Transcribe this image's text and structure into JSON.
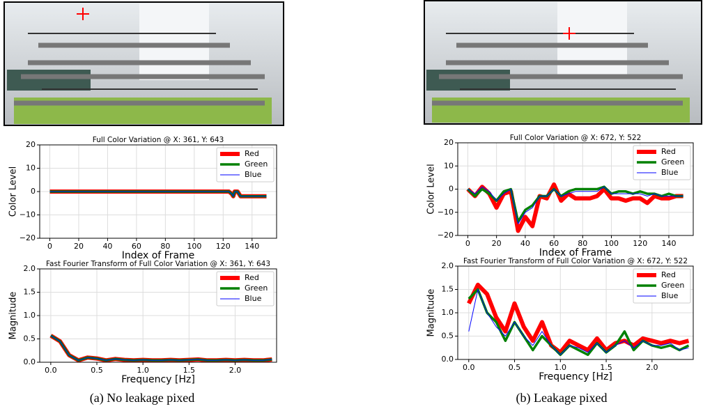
{
  "captions": [
    "(a) No leakage pixed",
    "(b) Leakage pixed"
  ],
  "chart_data": [
    {
      "type": "line",
      "title": "Full Color Variation @ X: 361, Y: 643",
      "xlabel": "Index of Frame",
      "ylabel": "Color Level",
      "x": [
        0,
        10,
        20,
        30,
        40,
        50,
        60,
        70,
        80,
        90,
        100,
        110,
        120,
        124,
        126,
        127,
        128,
        130,
        132,
        140,
        150
      ],
      "series": [
        {
          "name": "Red",
          "color": "#ff0000",
          "values": [
            0,
            0,
            0,
            0,
            0,
            0,
            0,
            0,
            0,
            0,
            0,
            0,
            0,
            0,
            -1,
            -2,
            0,
            0,
            -2,
            -2,
            -2
          ]
        },
        {
          "name": "Green",
          "color": "#008000",
          "values": [
            0,
            0,
            0,
            0,
            0,
            0,
            0,
            0,
            0,
            0,
            0,
            0,
            0,
            0,
            -1,
            -2,
            0,
            0,
            -2,
            -2,
            -2
          ]
        },
        {
          "name": "Blue",
          "color": "#0000ff",
          "values": [
            0,
            0,
            0,
            0,
            0,
            0,
            0,
            0,
            0,
            0,
            0,
            0,
            0,
            0,
            -1,
            -2,
            0,
            0,
            -2,
            -2,
            -2
          ]
        }
      ],
      "xlim": [
        -7,
        157
      ],
      "ylim": [
        -20,
        20
      ],
      "xticks": [
        0,
        20,
        40,
        60,
        80,
        100,
        120,
        140
      ],
      "yticks": [
        {
          "value": -20,
          "label": "−20"
        },
        {
          "value": -10,
          "label": "−10"
        },
        0,
        10,
        20
      ],
      "grid": true,
      "legend": "upper right"
    },
    {
      "type": "line",
      "title": "Fast Fourier Transform of Full Color Variation @ X: 361, Y: 643",
      "xlabel": "Frequency [Hz]",
      "ylabel": "Magnitude",
      "x": [
        0,
        0.1,
        0.2,
        0.3,
        0.4,
        0.5,
        0.6,
        0.7,
        0.8,
        0.9,
        1.0,
        1.1,
        1.2,
        1.3,
        1.4,
        1.5,
        1.6,
        1.7,
        1.8,
        1.9,
        2.0,
        2.1,
        2.2,
        2.3,
        2.4
      ],
      "series": [
        {
          "name": "Red",
          "color": "#ff0000",
          "values": [
            0.57,
            0.45,
            0.15,
            0.04,
            0.1,
            0.08,
            0.04,
            0.07,
            0.05,
            0.04,
            0.05,
            0.04,
            0.04,
            0.05,
            0.04,
            0.05,
            0.06,
            0.04,
            0.04,
            0.05,
            0.04,
            0.05,
            0.04,
            0.04,
            0.06
          ]
        },
        {
          "name": "Green",
          "color": "#008000",
          "values": [
            0.57,
            0.45,
            0.15,
            0.04,
            0.1,
            0.08,
            0.04,
            0.07,
            0.05,
            0.04,
            0.05,
            0.04,
            0.04,
            0.05,
            0.04,
            0.05,
            0.06,
            0.04,
            0.04,
            0.05,
            0.04,
            0.05,
            0.04,
            0.04,
            0.06
          ]
        },
        {
          "name": "Blue",
          "color": "#0000ff",
          "values": [
            0.57,
            0.45,
            0.15,
            0.04,
            0.1,
            0.08,
            0.04,
            0.07,
            0.05,
            0.04,
            0.05,
            0.04,
            0.04,
            0.05,
            0.04,
            0.05,
            0.06,
            0.04,
            0.04,
            0.05,
            0.04,
            0.05,
            0.04,
            0.04,
            0.06
          ]
        }
      ],
      "xlim": [
        -0.12,
        2.45
      ],
      "ylim": [
        0,
        2
      ],
      "xticks": [
        {
          "value": 0,
          "label": "0.0"
        },
        {
          "value": 0.5,
          "label": "0.5"
        },
        {
          "value": 1,
          "label": "1.0"
        },
        {
          "value": 1.5,
          "label": "1.5"
        },
        {
          "value": 2,
          "label": "2.0"
        }
      ],
      "yticks": [
        {
          "value": 0,
          "label": "0.0"
        },
        {
          "value": 0.5,
          "label": "0.5"
        },
        {
          "value": 1,
          "label": "1.0"
        },
        {
          "value": 1.5,
          "label": "1.5"
        },
        {
          "value": 2,
          "label": "2.0"
        }
      ],
      "grid": true,
      "legend": "upper right"
    },
    {
      "type": "line",
      "title": "Full Color Variation @ X: 672, Y: 522",
      "xlabel": "Index of Frame",
      "ylabel": "Color Level",
      "x": [
        0,
        5,
        10,
        15,
        20,
        25,
        30,
        35,
        40,
        45,
        50,
        55,
        60,
        65,
        70,
        75,
        80,
        85,
        90,
        95,
        100,
        105,
        110,
        115,
        120,
        125,
        130,
        135,
        140,
        145,
        150
      ],
      "series": [
        {
          "name": "Red",
          "color": "#ff0000",
          "values": [
            0,
            -3,
            1,
            -2,
            -8,
            -2,
            -1,
            -18,
            -12,
            -16,
            -3,
            -4,
            2,
            -5,
            -2,
            -4,
            -4,
            -4,
            -3,
            0,
            -4,
            -4,
            -5,
            -4,
            -4,
            -6,
            -3,
            -4,
            -4,
            -3,
            -3
          ]
        },
        {
          "name": "Green",
          "color": "#008000",
          "values": [
            0,
            -3,
            0,
            -2,
            -5,
            -1,
            0,
            -14,
            -9,
            -7,
            -3,
            -3,
            0,
            -3,
            -1,
            0,
            0,
            0,
            0,
            1,
            -2,
            -1,
            -1,
            -2,
            -1,
            -2,
            -2,
            -3,
            -2,
            -3,
            -3
          ]
        },
        {
          "name": "Blue",
          "color": "#0000ff",
          "values": [
            0,
            -2,
            1,
            -1,
            -5,
            -2,
            0,
            -15,
            -10,
            -8,
            -3,
            -3,
            0,
            -3,
            -2,
            -1,
            -1,
            -1,
            -1,
            1,
            -2,
            -2,
            -2,
            -2,
            -2,
            -3,
            -2,
            -3,
            -3,
            -3,
            -3
          ]
        }
      ],
      "xlim": [
        -7,
        157
      ],
      "ylim": [
        -20,
        20
      ],
      "xticks": [
        0,
        20,
        40,
        60,
        80,
        100,
        120,
        140
      ],
      "yticks": [
        {
          "value": -20,
          "label": "−20"
        },
        {
          "value": -10,
          "label": "−10"
        },
        0,
        10,
        20
      ],
      "grid": true,
      "legend": "upper right"
    },
    {
      "type": "line",
      "title": "Fast Fourier Transform of Full Color Variation @ X: 672, Y: 522",
      "xlabel": "Frequency [Hz]",
      "ylabel": "Magnitude",
      "x": [
        0,
        0.1,
        0.2,
        0.3,
        0.4,
        0.5,
        0.6,
        0.7,
        0.8,
        0.9,
        1.0,
        1.1,
        1.2,
        1.3,
        1.4,
        1.5,
        1.6,
        1.7,
        1.8,
        1.9,
        2.0,
        2.1,
        2.2,
        2.3,
        2.4
      ],
      "series": [
        {
          "name": "Red",
          "color": "#ff0000",
          "values": [
            1.2,
            1.6,
            1.4,
            0.9,
            0.6,
            1.2,
            0.7,
            0.4,
            0.8,
            0.3,
            0.15,
            0.4,
            0.3,
            0.2,
            0.45,
            0.2,
            0.35,
            0.4,
            0.3,
            0.45,
            0.4,
            0.35,
            0.4,
            0.35,
            0.4
          ]
        },
        {
          "name": "Green",
          "color": "#008000",
          "values": [
            1.3,
            1.5,
            1.0,
            0.8,
            0.4,
            0.8,
            0.5,
            0.2,
            0.5,
            0.3,
            0.1,
            0.3,
            0.2,
            0.1,
            0.35,
            0.15,
            0.3,
            0.6,
            0.2,
            0.4,
            0.3,
            0.25,
            0.3,
            0.2,
            0.3
          ]
        },
        {
          "name": "Blue",
          "color": "#0000ff",
          "values": [
            0.6,
            1.5,
            1.0,
            0.7,
            0.5,
            0.8,
            0.5,
            0.3,
            0.6,
            0.3,
            0.1,
            0.3,
            0.25,
            0.15,
            0.35,
            0.15,
            0.3,
            0.4,
            0.25,
            0.4,
            0.3,
            0.3,
            0.35,
            0.2,
            0.25
          ]
        }
      ],
      "xlim": [
        -0.12,
        2.45
      ],
      "ylim": [
        0,
        2
      ],
      "xticks": [
        {
          "value": 0,
          "label": "0.0"
        },
        {
          "value": 0.5,
          "label": "0.5"
        },
        {
          "value": 1,
          "label": "1.0"
        },
        {
          "value": 1.5,
          "label": "1.5"
        },
        {
          "value": 2,
          "label": "2.0"
        }
      ],
      "yticks": [
        {
          "value": 0,
          "label": "0.0"
        },
        {
          "value": 0.5,
          "label": "0.5"
        },
        {
          "value": 1,
          "label": "1.0"
        },
        {
          "value": 1.5,
          "label": "1.5"
        },
        {
          "value": 2,
          "label": "2.0"
        }
      ],
      "grid": true,
      "legend": "upper right"
    }
  ]
}
